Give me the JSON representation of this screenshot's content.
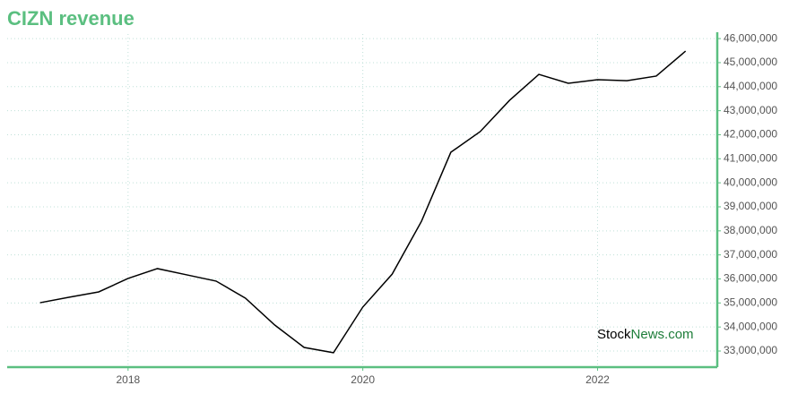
{
  "chart_data": {
    "type": "line",
    "title": "CIZN revenue",
    "x": [
      2017.25,
      2017.5,
      2017.75,
      2018.0,
      2018.25,
      2018.5,
      2018.75,
      2019.0,
      2019.25,
      2019.5,
      2019.75,
      2020.0,
      2020.25,
      2020.5,
      2020.75,
      2021.0,
      2021.25,
      2021.5,
      2021.75,
      2022.0,
      2022.25,
      2022.5,
      2022.75
    ],
    "series": [
      {
        "name": "CIZN revenue",
        "color": "#000000",
        "values": [
          35010000,
          35240000,
          35460000,
          36020000,
          36430000,
          36170000,
          35910000,
          35200000,
          34080000,
          33150000,
          32930000,
          34830000,
          36200000,
          38400000,
          41270000,
          42130000,
          43430000,
          44510000,
          44140000,
          44290000,
          44250000,
          44440000,
          45480000
        ]
      }
    ],
    "xlim": [
      2016.97,
      2023.02
    ],
    "xticks": [
      2018,
      2020,
      2022
    ],
    "ylim": [
      32330000,
      46190000
    ],
    "yticks": [
      {
        "value": 33000000,
        "label": "33,000,000"
      },
      {
        "value": 34000000,
        "label": "34,000,000"
      },
      {
        "value": 35000000,
        "label": "35,000,000"
      },
      {
        "value": 36000000,
        "label": "36,000,000"
      },
      {
        "value": 37000000,
        "label": "37,000,000"
      },
      {
        "value": 38000000,
        "label": "38,000,000"
      },
      {
        "value": 39000000,
        "label": "39,000,000"
      },
      {
        "value": 40000000,
        "label": "40,000,000"
      },
      {
        "value": 41000000,
        "label": "41,000,000"
      },
      {
        "value": 42000000,
        "label": "42,000,000"
      },
      {
        "value": 43000000,
        "label": "43,000,000"
      },
      {
        "value": 44000000,
        "label": "44,000,000"
      },
      {
        "value": 45000000,
        "label": "45,000,000"
      },
      {
        "value": 46000000,
        "label": "46,000,000"
      }
    ],
    "grid": true,
    "axis_color": "#5bbf80",
    "watermark": [
      "Stock",
      "News.com"
    ]
  }
}
